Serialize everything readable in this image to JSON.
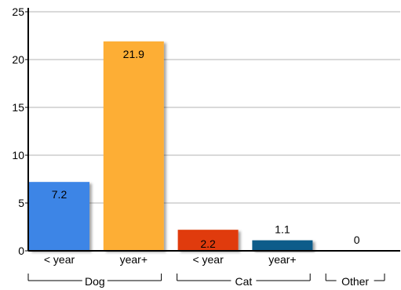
{
  "chart_data": {
    "type": "bar",
    "title": "",
    "xlabel": "",
    "ylabel": "",
    "ylim": [
      0,
      25
    ],
    "yticks": [
      0,
      5,
      10,
      15,
      20,
      25
    ],
    "grid": true,
    "legend": "none",
    "bars": [
      {
        "label": "< year",
        "group": "Dog",
        "value": 7.2,
        "value_label": "7.2",
        "color": "#3d85e6"
      },
      {
        "label": "year+",
        "group": "Dog",
        "value": 21.9,
        "value_label": "21.9",
        "color": "#fdae35"
      },
      {
        "label": "< year",
        "group": "Cat",
        "value": 2.2,
        "value_label": "2.2",
        "color": "#e03b0a"
      },
      {
        "label": "year+",
        "group": "Cat",
        "value": 1.1,
        "value_label": "1.1",
        "color": "#0b5c8a"
      },
      {
        "label": "",
        "group": "Other",
        "value": 0,
        "value_label": "0",
        "color": "#7f7f7f"
      }
    ],
    "groups": [
      {
        "name": "Dog",
        "first": 0,
        "last": 1
      },
      {
        "name": "Cat",
        "first": 2,
        "last": 3
      },
      {
        "name": "Other",
        "first": 4,
        "last": 4
      }
    ]
  }
}
